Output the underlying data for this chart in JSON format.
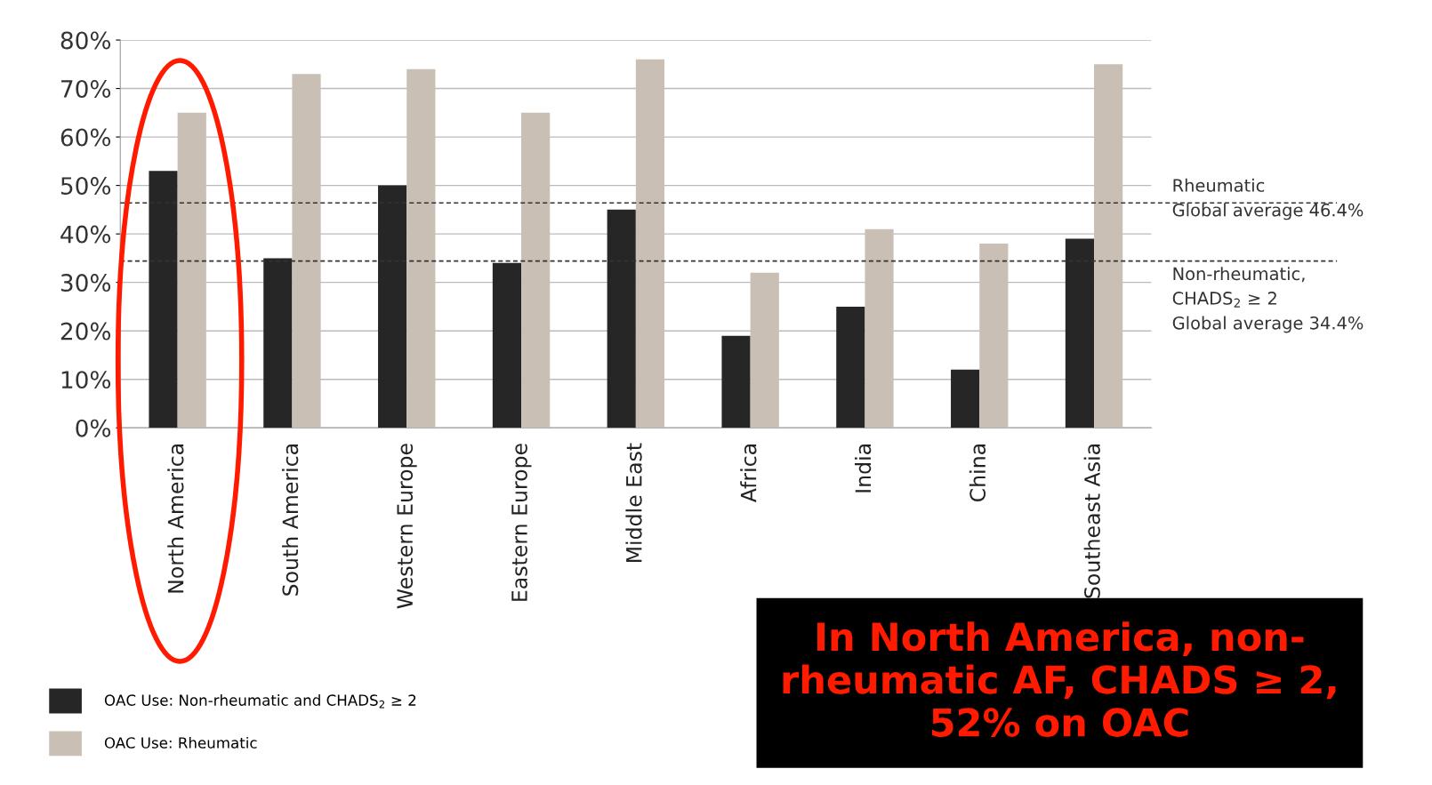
{
  "chart_data": {
    "type": "bar",
    "categories": [
      "North America",
      "South America",
      "Western Europe",
      "Eastern Europe",
      "Middle East",
      "Africa",
      "India",
      "China",
      "Southeast Asia"
    ],
    "series": [
      {
        "name": "OAC Use: Non-rheumatic and CHADS$_{2}$ ≥ 2",
        "color": "#262626",
        "values": [
          53,
          35,
          50,
          34,
          45,
          19,
          25,
          12,
          39
        ]
      },
      {
        "name": "OAC Use: Rheumatic",
        "color": "#c9bfb5",
        "values": [
          65,
          73,
          74,
          65,
          76,
          32,
          41,
          38,
          75
        ]
      }
    ],
    "ylim": [
      0,
      80
    ],
    "yticks": [
      {
        "value": 0,
        "label": "0%"
      },
      {
        "value": 10,
        "label": "10%"
      },
      {
        "value": 20,
        "label": "20%"
      },
      {
        "value": 30,
        "label": "30%"
      },
      {
        "value": 40,
        "label": "40%"
      },
      {
        "value": 50,
        "label": "50%"
      },
      {
        "value": 60,
        "label": "60%"
      },
      {
        "value": 70,
        "label": "70%"
      },
      {
        "value": 80,
        "label": "80%"
      }
    ],
    "ref_lines": [
      {
        "axis": "y",
        "value": 46.4,
        "label": "Rheumatic\nGlobal average 46.4%",
        "color": "#333333",
        "line_style": "dashed"
      },
      {
        "axis": "y",
        "value": 34.4,
        "label": "Non-rheumatic,\nCHADS$_{2}$ ≥ 2\nGlobal average 34.4%",
        "color": "#333333",
        "line_style": "dashed"
      }
    ],
    "annotations": [
      "In North America, non-\nrheumatic AF, CHADS ≥ 2,\n52% on OAC"
    ],
    "grid": "y",
    "legend": "bottom left"
  }
}
